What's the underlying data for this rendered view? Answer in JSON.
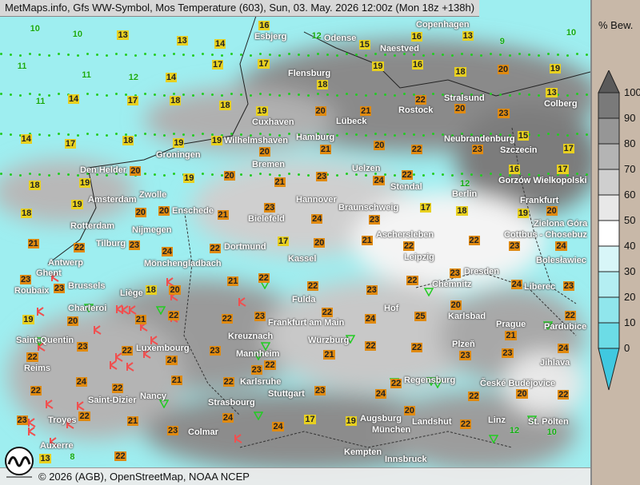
{
  "title": "MetMaps.info, Gfs WW-Symbol, Mos Temperature (603), Sun, 03. May. 2026 12:00z (Mon 18z +138h)",
  "attribution": "© 2026 (AGB), OpenStreetMap, NOAA NCEP",
  "logo_text": "METMAPS",
  "legend": {
    "title": "% Bew.",
    "ticks": [
      "100",
      "90",
      "80",
      "70",
      "60",
      "50",
      "40",
      "30",
      "20",
      "10",
      "0"
    ],
    "colors": [
      "#5a5a5a",
      "#7a7a7a",
      "#969696",
      "#b4b4b4",
      "#cfcfcf",
      "#e8e8e8",
      "#ffffff",
      "#d8f6f8",
      "#b4eef2",
      "#90e6ec",
      "#6cdce6",
      "#40c8e0"
    ]
  },
  "cities": [
    "Esbjerg",
    "Odense",
    "Naestved",
    "Copenhagen",
    "Flensburg",
    "Stralsund",
    "Colberg",
    "Rostock",
    "Cuxhaven",
    "Lübeck",
    "Hamburg",
    "Neubrandenburg",
    "Szczecin",
    "Groningen",
    "Wilhelmshaven",
    "Den Helder",
    "Bremen",
    "Uelzen",
    "Gorzów Wielkopolski",
    "Amsterdam",
    "Zwolle",
    "Stendal",
    "Berlin",
    "Frankfurt",
    "Hannover",
    "Enschede",
    "Braunschweig",
    "Rotterdam",
    "Bielefeld",
    "Nijmegen",
    "Zielona Góra",
    "Cottbus - Chosebuz",
    "Aschersleben",
    "Tilburg",
    "Dortmund",
    "Kassel",
    "Antwerp",
    "Leipzig",
    "Dresden",
    "Bolesławiec",
    "Mönchengladbach",
    "Ghent",
    "Brussels",
    "Liège",
    "Fulda",
    "Chemnitz",
    "Liberec",
    "Roubaix",
    "Charleroi",
    "Frankfurt am Main",
    "Hof",
    "Karlsbad",
    "Prague",
    "Pardubice",
    "Saint-Quentin",
    "Luxembourg",
    "Würzburg",
    "Plzeň",
    "Reims",
    "Kreuznach",
    "Mannheim",
    "Jihlava",
    "Saint-Dizier",
    "Karlsruhe",
    "Regensburg",
    "Nancy",
    "Stuttgart",
    "České Budějovice",
    "Troyes",
    "Strasbourg",
    "Augsburg",
    "Landshut",
    "Linz",
    "Colmar",
    "München",
    "St. Pölten",
    "Auxerre",
    "Kempten",
    "Innsbruck"
  ],
  "temperatures": [
    "10",
    "10",
    "13",
    "13",
    "14",
    "16",
    "12",
    "15",
    "16",
    "13",
    "9",
    "10",
    "11",
    "11",
    "12",
    "14",
    "17",
    "17",
    "18",
    "19",
    "16",
    "18",
    "20",
    "19",
    "11",
    "14",
    "17",
    "18",
    "18",
    "19",
    "20",
    "21",
    "22",
    "20",
    "23",
    "13",
    "14",
    "17",
    "18",
    "19",
    "19",
    "20",
    "21",
    "20",
    "22",
    "23",
    "15",
    "17",
    "18",
    "19",
    "20",
    "19",
    "20",
    "21",
    "23",
    "24",
    "22",
    "12",
    "16",
    "17",
    "18",
    "19",
    "20",
    "20",
    "21",
    "23",
    "24",
    "23",
    "17",
    "18",
    "19",
    "20",
    "21",
    "22",
    "23",
    "24",
    "22",
    "17",
    "20",
    "21",
    "22",
    "22",
    "23",
    "24",
    "23",
    "23",
    "18",
    "20",
    "21",
    "22",
    "22",
    "23",
    "22",
    "23",
    "24",
    "23",
    "19",
    "20",
    "21",
    "22",
    "22",
    "23",
    "22",
    "24",
    "25",
    "20",
    "21",
    "22",
    "22",
    "23",
    "22",
    "24",
    "23",
    "22",
    "21",
    "22",
    "22",
    "23",
    "23",
    "24",
    "22",
    "24",
    "22",
    "21",
    "22",
    "23",
    "23",
    "24",
    "22",
    "22",
    "20",
    "22",
    "23",
    "22",
    "21",
    "23",
    "24",
    "24",
    "17",
    "19",
    "20",
    "22",
    "12",
    "10",
    "13",
    "8",
    "22"
  ]
}
